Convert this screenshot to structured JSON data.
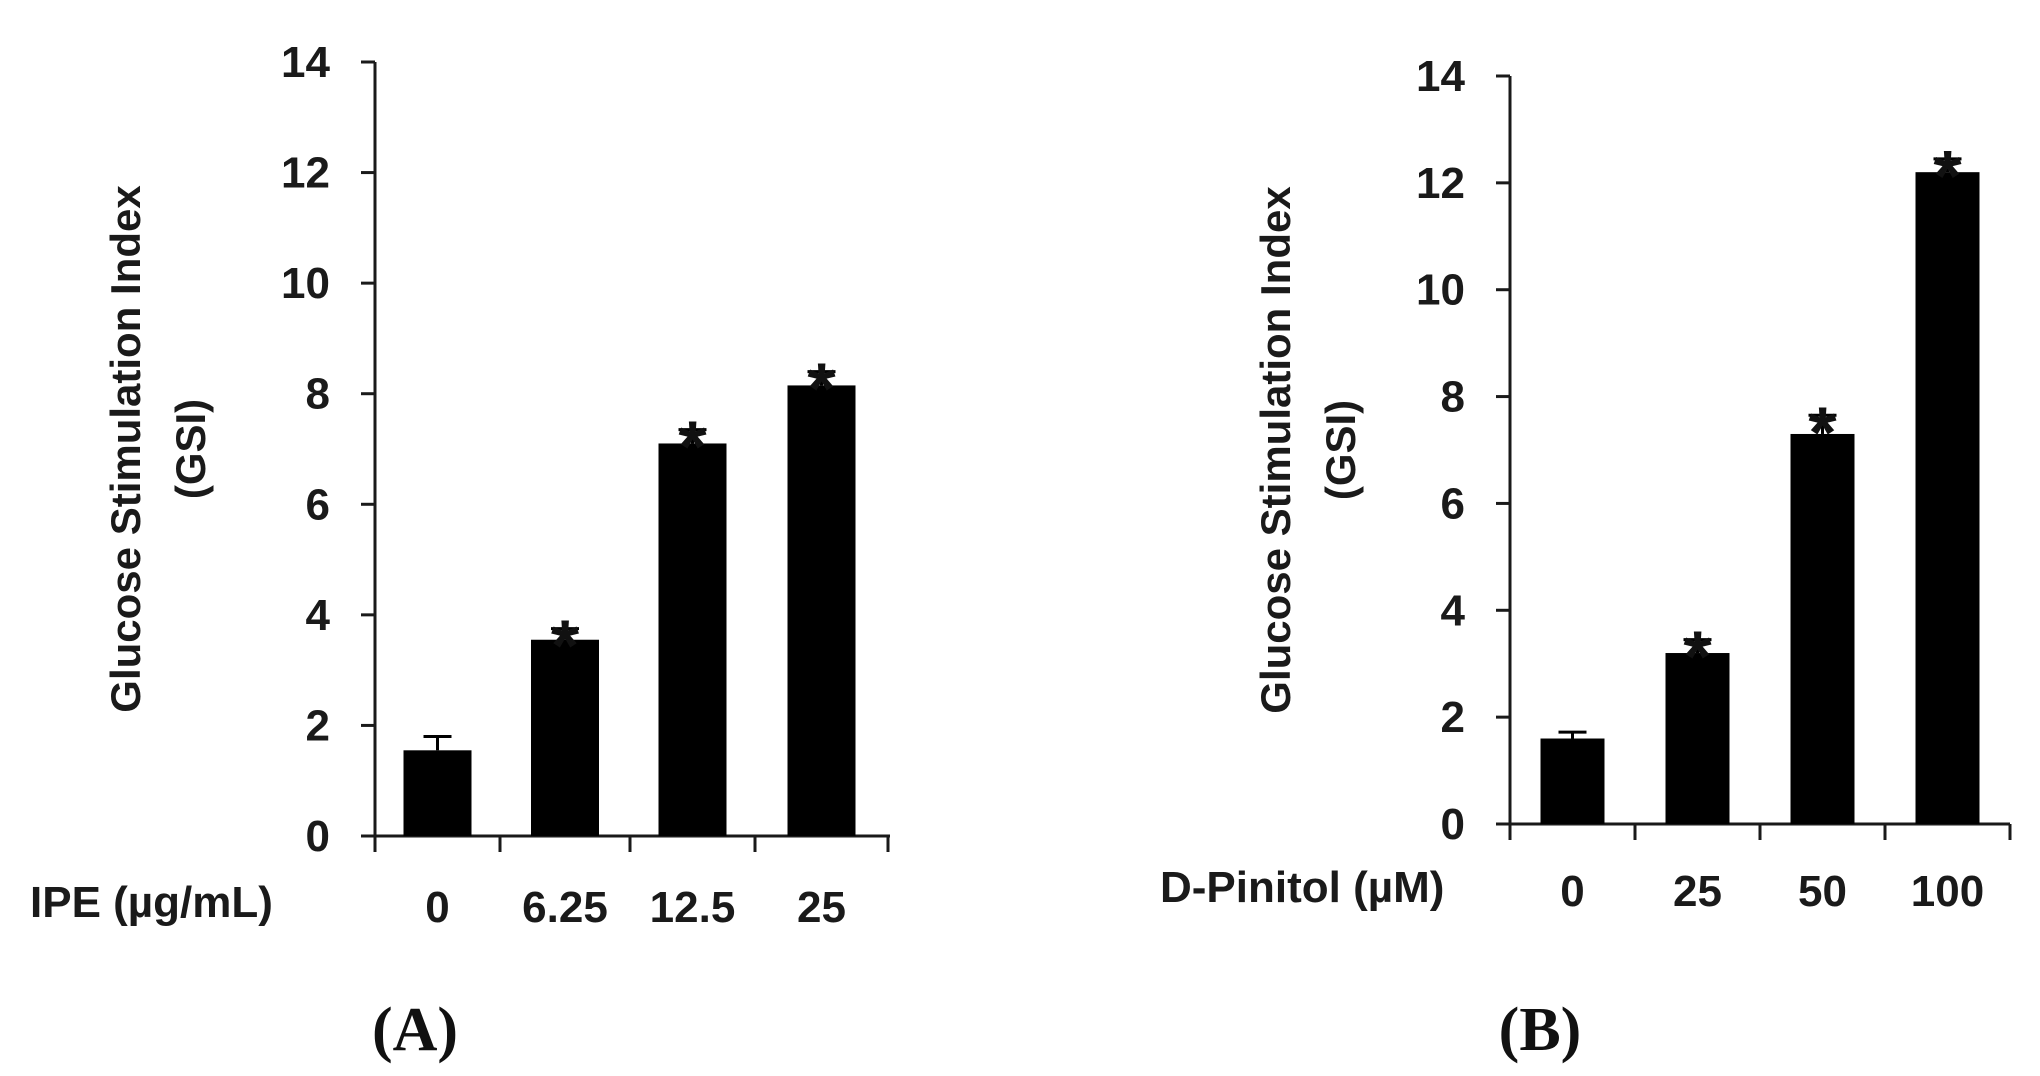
{
  "chart_data": [
    {
      "type": "bar",
      "panel_label": "(A)",
      "xvar_label": "IPE (µg/mL)",
      "ylabel_line1": "Glucose Stimulation Index",
      "ylabel_line2": "(GSI)",
      "categories": [
        "0",
        "6.25",
        "12.5",
        "25"
      ],
      "values": [
        1.55,
        3.55,
        7.1,
        8.15
      ],
      "errors": [
        0.25,
        0.2,
        0.25,
        0.25
      ],
      "significance": [
        "",
        "*",
        "*",
        "*"
      ],
      "ylim": [
        0,
        14
      ],
      "yticks": [
        "0",
        "2",
        "4",
        "6",
        "8",
        "10",
        "12",
        "14"
      ],
      "bar_color": "#000000",
      "grid": false
    },
    {
      "type": "bar",
      "panel_label": "(B)",
      "xvar_label": "D-Pinitol (µM)",
      "ylabel_line1": "Glucose Stimulation Index",
      "ylabel_line2": "(GSI)",
      "categories": [
        "0",
        "25",
        "50",
        "100"
      ],
      "values": [
        1.6,
        3.2,
        7.3,
        12.2
      ],
      "errors": [
        0.12,
        0.25,
        0.35,
        0.25
      ],
      "significance": [
        "",
        "*",
        "*",
        "*"
      ],
      "ylim": [
        0,
        14
      ],
      "yticks": [
        "0",
        "2",
        "4",
        "6",
        "8",
        "10",
        "12",
        "14"
      ],
      "bar_color": "#000000",
      "grid": false
    }
  ]
}
